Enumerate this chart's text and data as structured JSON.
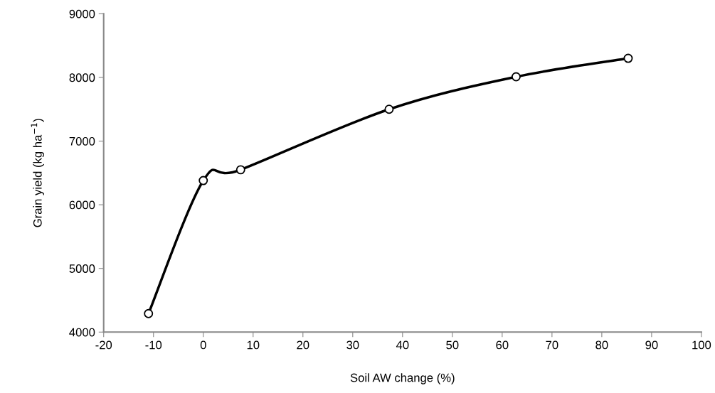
{
  "chart_data": {
    "type": "line",
    "xlabel": "Soil AW change (%)",
    "ylabel": "Grain yield (kg ha$^{−1}$)",
    "x": [
      -11,
      0,
      7.5,
      37.3,
      62.8,
      85.3
    ],
    "series": [
      {
        "color": "#000000",
        "values": [
          4290,
          6380,
          6550,
          7500,
          8010,
          8300
        ]
      }
    ],
    "xlim": [
      -20,
      100
    ],
    "xticks": [
      -20,
      -10,
      0,
      10,
      20,
      30,
      40,
      50,
      60,
      70,
      80,
      90,
      100
    ],
    "ylim": [
      4000,
      9000
    ],
    "yticks": [
      4000,
      5000,
      6000,
      7000,
      8000,
      9000
    ],
    "grid": false,
    "legend": false,
    "marker": "circle",
    "line_style": "solid"
  }
}
